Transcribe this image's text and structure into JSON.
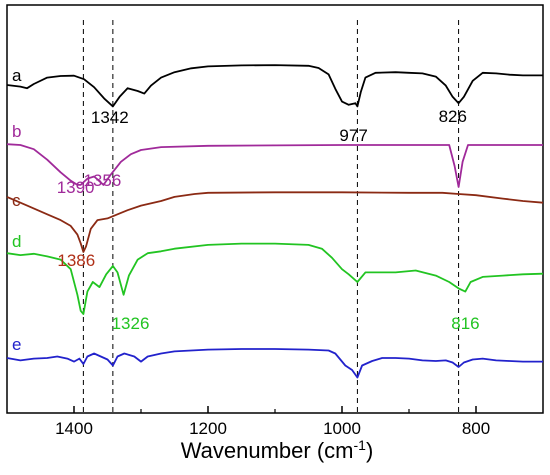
{
  "chart_data": {
    "type": "line",
    "title": "",
    "xlabel_main": "Wavenumber (cm",
    "xlabel_sup": "-1",
    "xlabel_close": ")",
    "ylabel": "",
    "xlim": [
      1500,
      700
    ],
    "x_reversed": true,
    "y_axis_labels_shown": false,
    "grid": false,
    "x_ticks": [
      1400,
      1200,
      1000,
      800
    ],
    "x_tick_labels": [
      "1400",
      "1200",
      "1000",
      "800"
    ],
    "reference_lines": [
      1386,
      1342,
      977,
      826
    ],
    "series": [
      {
        "name": "a",
        "color": "#000000",
        "points": [
          [
            1500,
            -0.28
          ],
          [
            1480,
            -0.33
          ],
          [
            1470,
            -0.38
          ],
          [
            1460,
            -0.25
          ],
          [
            1440,
            -0.05
          ],
          [
            1420,
            0.0
          ],
          [
            1400,
            0.01
          ],
          [
            1385,
            -0.1
          ],
          [
            1370,
            -0.35
          ],
          [
            1355,
            -0.7
          ],
          [
            1342,
            -0.95
          ],
          [
            1332,
            -0.65
          ],
          [
            1320,
            -0.38
          ],
          [
            1305,
            -0.47
          ],
          [
            1295,
            -0.55
          ],
          [
            1285,
            -0.3
          ],
          [
            1270,
            -0.05
          ],
          [
            1250,
            0.12
          ],
          [
            1225,
            0.24
          ],
          [
            1200,
            0.3
          ],
          [
            1150,
            0.33
          ],
          [
            1100,
            0.34
          ],
          [
            1050,
            0.32
          ],
          [
            1035,
            0.25
          ],
          [
            1020,
            0.05
          ],
          [
            1010,
            -0.4
          ],
          [
            1000,
            -0.8
          ],
          [
            990,
            -0.9
          ],
          [
            980,
            -0.85
          ],
          [
            977,
            -0.95
          ],
          [
            972,
            -0.5
          ],
          [
            965,
            -0.05
          ],
          [
            950,
            0.1
          ],
          [
            920,
            0.12
          ],
          [
            900,
            0.1
          ],
          [
            880,
            0.08
          ],
          [
            860,
            -0.02
          ],
          [
            845,
            -0.3
          ],
          [
            835,
            -0.65
          ],
          [
            826,
            -0.85
          ],
          [
            818,
            -0.65
          ],
          [
            805,
            -0.15
          ],
          [
            790,
            0.1
          ],
          [
            770,
            0.08
          ],
          [
            750,
            0.04
          ],
          [
            730,
            0.02
          ],
          [
            700,
            0.02
          ]
        ]
      },
      {
        "name": "b",
        "color": "#a02a9a",
        "points": [
          [
            1500,
            0.02
          ],
          [
            1480,
            0.0
          ],
          [
            1460,
            -0.1
          ],
          [
            1440,
            -0.35
          ],
          [
            1420,
            -0.65
          ],
          [
            1405,
            -0.85
          ],
          [
            1395,
            -0.95
          ],
          [
            1390,
            -0.95
          ],
          [
            1380,
            -0.8
          ],
          [
            1370,
            -0.75
          ],
          [
            1365,
            -0.82
          ],
          [
            1356,
            -0.95
          ],
          [
            1345,
            -0.7
          ],
          [
            1330,
            -0.4
          ],
          [
            1315,
            -0.22
          ],
          [
            1300,
            -0.12
          ],
          [
            1270,
            -0.05
          ],
          [
            1200,
            -0.02
          ],
          [
            1100,
            -0.01
          ],
          [
            1000,
            0.0
          ],
          [
            950,
            0.0
          ],
          [
            900,
            0.0
          ],
          [
            860,
            0.0
          ],
          [
            840,
            0.0
          ],
          [
            832,
            -0.5
          ],
          [
            826,
            -1.0
          ],
          [
            820,
            -0.4
          ],
          [
            812,
            0.0
          ],
          [
            790,
            0.0
          ],
          [
            750,
            0.0
          ],
          [
            700,
            0.0
          ]
        ]
      },
      {
        "name": "c",
        "color": "#8b2a14",
        "points": [
          [
            1500,
            -0.05
          ],
          [
            1470,
            -0.2
          ],
          [
            1440,
            -0.35
          ],
          [
            1420,
            -0.45
          ],
          [
            1405,
            -0.55
          ],
          [
            1395,
            -0.7
          ],
          [
            1390,
            -0.85
          ],
          [
            1386,
            -1.0
          ],
          [
            1382,
            -0.9
          ],
          [
            1375,
            -0.6
          ],
          [
            1365,
            -0.45
          ],
          [
            1350,
            -0.42
          ],
          [
            1335,
            -0.35
          ],
          [
            1320,
            -0.28
          ],
          [
            1300,
            -0.2
          ],
          [
            1270,
            -0.12
          ],
          [
            1250,
            -0.05
          ],
          [
            1220,
            0.0
          ],
          [
            1200,
            0.02
          ],
          [
            1100,
            0.03
          ],
          [
            1000,
            0.03
          ],
          [
            900,
            0.02
          ],
          [
            850,
            0.02
          ],
          [
            826,
            0.0
          ],
          [
            800,
            -0.02
          ],
          [
            760,
            -0.08
          ],
          [
            730,
            -0.12
          ],
          [
            700,
            -0.15
          ]
        ]
      },
      {
        "name": "d",
        "color": "#22c422",
        "points": [
          [
            1500,
            -0.05
          ],
          [
            1480,
            -0.08
          ],
          [
            1460,
            -0.06
          ],
          [
            1440,
            -0.1
          ],
          [
            1420,
            -0.15
          ],
          [
            1405,
            -0.3
          ],
          [
            1395,
            -0.7
          ],
          [
            1390,
            -0.95
          ],
          [
            1386,
            -1.0
          ],
          [
            1380,
            -0.65
          ],
          [
            1372,
            -0.5
          ],
          [
            1362,
            -0.58
          ],
          [
            1352,
            -0.38
          ],
          [
            1342,
            -0.25
          ],
          [
            1335,
            -0.35
          ],
          [
            1326,
            -0.7
          ],
          [
            1318,
            -0.4
          ],
          [
            1305,
            -0.15
          ],
          [
            1290,
            -0.05
          ],
          [
            1270,
            -0.02
          ],
          [
            1250,
            0.02
          ],
          [
            1200,
            0.08
          ],
          [
            1150,
            0.1
          ],
          [
            1100,
            0.1
          ],
          [
            1050,
            0.08
          ],
          [
            1030,
            0.02
          ],
          [
            1015,
            -0.12
          ],
          [
            1000,
            -0.3
          ],
          [
            990,
            -0.38
          ],
          [
            977,
            -0.5
          ],
          [
            965,
            -0.35
          ],
          [
            950,
            -0.35
          ],
          [
            920,
            -0.35
          ],
          [
            890,
            -0.32
          ],
          [
            860,
            -0.4
          ],
          [
            840,
            -0.5
          ],
          [
            826,
            -0.6
          ],
          [
            816,
            -0.65
          ],
          [
            808,
            -0.5
          ],
          [
            790,
            -0.42
          ],
          [
            760,
            -0.4
          ],
          [
            730,
            -0.38
          ],
          [
            700,
            -0.37
          ]
        ]
      },
      {
        "name": "e",
        "color": "#2222cc",
        "points": [
          [
            1500,
            -0.1
          ],
          [
            1480,
            -0.18
          ],
          [
            1460,
            -0.12
          ],
          [
            1440,
            -0.1
          ],
          [
            1425,
            -0.05
          ],
          [
            1410,
            -0.12
          ],
          [
            1400,
            -0.22
          ],
          [
            1392,
            -0.12
          ],
          [
            1386,
            -0.3
          ],
          [
            1380,
            -0.05
          ],
          [
            1370,
            0.05
          ],
          [
            1360,
            -0.05
          ],
          [
            1350,
            -0.15
          ],
          [
            1342,
            -0.35
          ],
          [
            1335,
            -0.05
          ],
          [
            1325,
            0.05
          ],
          [
            1310,
            -0.05
          ],
          [
            1300,
            -0.22
          ],
          [
            1290,
            -0.05
          ],
          [
            1270,
            0.05
          ],
          [
            1250,
            0.12
          ],
          [
            1200,
            0.18
          ],
          [
            1150,
            0.2
          ],
          [
            1100,
            0.2
          ],
          [
            1050,
            0.18
          ],
          [
            1020,
            0.15
          ],
          [
            1010,
            0.05
          ],
          [
            995,
            -0.35
          ],
          [
            985,
            -0.5
          ],
          [
            977,
            -0.75
          ],
          [
            970,
            -0.35
          ],
          [
            955,
            -0.2
          ],
          [
            940,
            -0.1
          ],
          [
            920,
            -0.1
          ],
          [
            900,
            -0.12
          ],
          [
            880,
            -0.18
          ],
          [
            860,
            -0.2
          ],
          [
            845,
            -0.18
          ],
          [
            835,
            -0.25
          ],
          [
            826,
            -0.4
          ],
          [
            818,
            -0.25
          ],
          [
            805,
            -0.15
          ],
          [
            790,
            -0.12
          ],
          [
            770,
            -0.18
          ],
          [
            750,
            -0.2
          ],
          [
            730,
            -0.22
          ],
          [
            700,
            -0.22
          ]
        ]
      }
    ],
    "peak_labels": [
      {
        "text": "1342",
        "x": 1342,
        "series": "a",
        "color": "#000000"
      },
      {
        "text": "977",
        "x": 977,
        "series": "a",
        "color": "#000000"
      },
      {
        "text": "826",
        "x": 826,
        "series": "a",
        "color": "#000000"
      },
      {
        "text": "1390",
        "x": 1390,
        "series": "b",
        "color": "#a02a9a"
      },
      {
        "text": "1356",
        "x": 1356,
        "series": "b",
        "color": "#a02a9a"
      },
      {
        "text": "1386",
        "x": 1386,
        "series": "c",
        "color": "#b03018"
      },
      {
        "text": "1326",
        "x": 1326,
        "series": "d",
        "color": "#22c422"
      },
      {
        "text": "816",
        "x": 816,
        "series": "d",
        "color": "#22c422"
      }
    ]
  }
}
